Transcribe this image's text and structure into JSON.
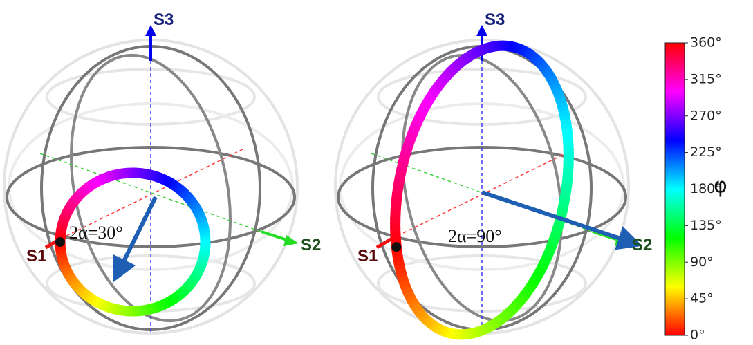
{
  "spheres": [
    {
      "s1": "S1",
      "s2": "S2",
      "s3": "S3",
      "annotation": "2α=30°"
    },
    {
      "s1": "S1",
      "s2": "S2",
      "s3": "S3",
      "annotation": "2α=90°"
    }
  ],
  "colorbar": {
    "label": "φ",
    "clim": [
      0,
      360
    ],
    "ticks": [
      {
        "value": 0,
        "label": "0°"
      },
      {
        "value": 45,
        "label": "45°"
      },
      {
        "value": 90,
        "label": "90°"
      },
      {
        "value": 135,
        "label": "135°"
      },
      {
        "value": 180,
        "label": "180°"
      },
      {
        "value": 225,
        "label": "225°"
      },
      {
        "value": 270,
        "label": "270°"
      },
      {
        "value": 315,
        "label": "315°"
      },
      {
        "value": 360,
        "label": "360°"
      }
    ]
  }
}
